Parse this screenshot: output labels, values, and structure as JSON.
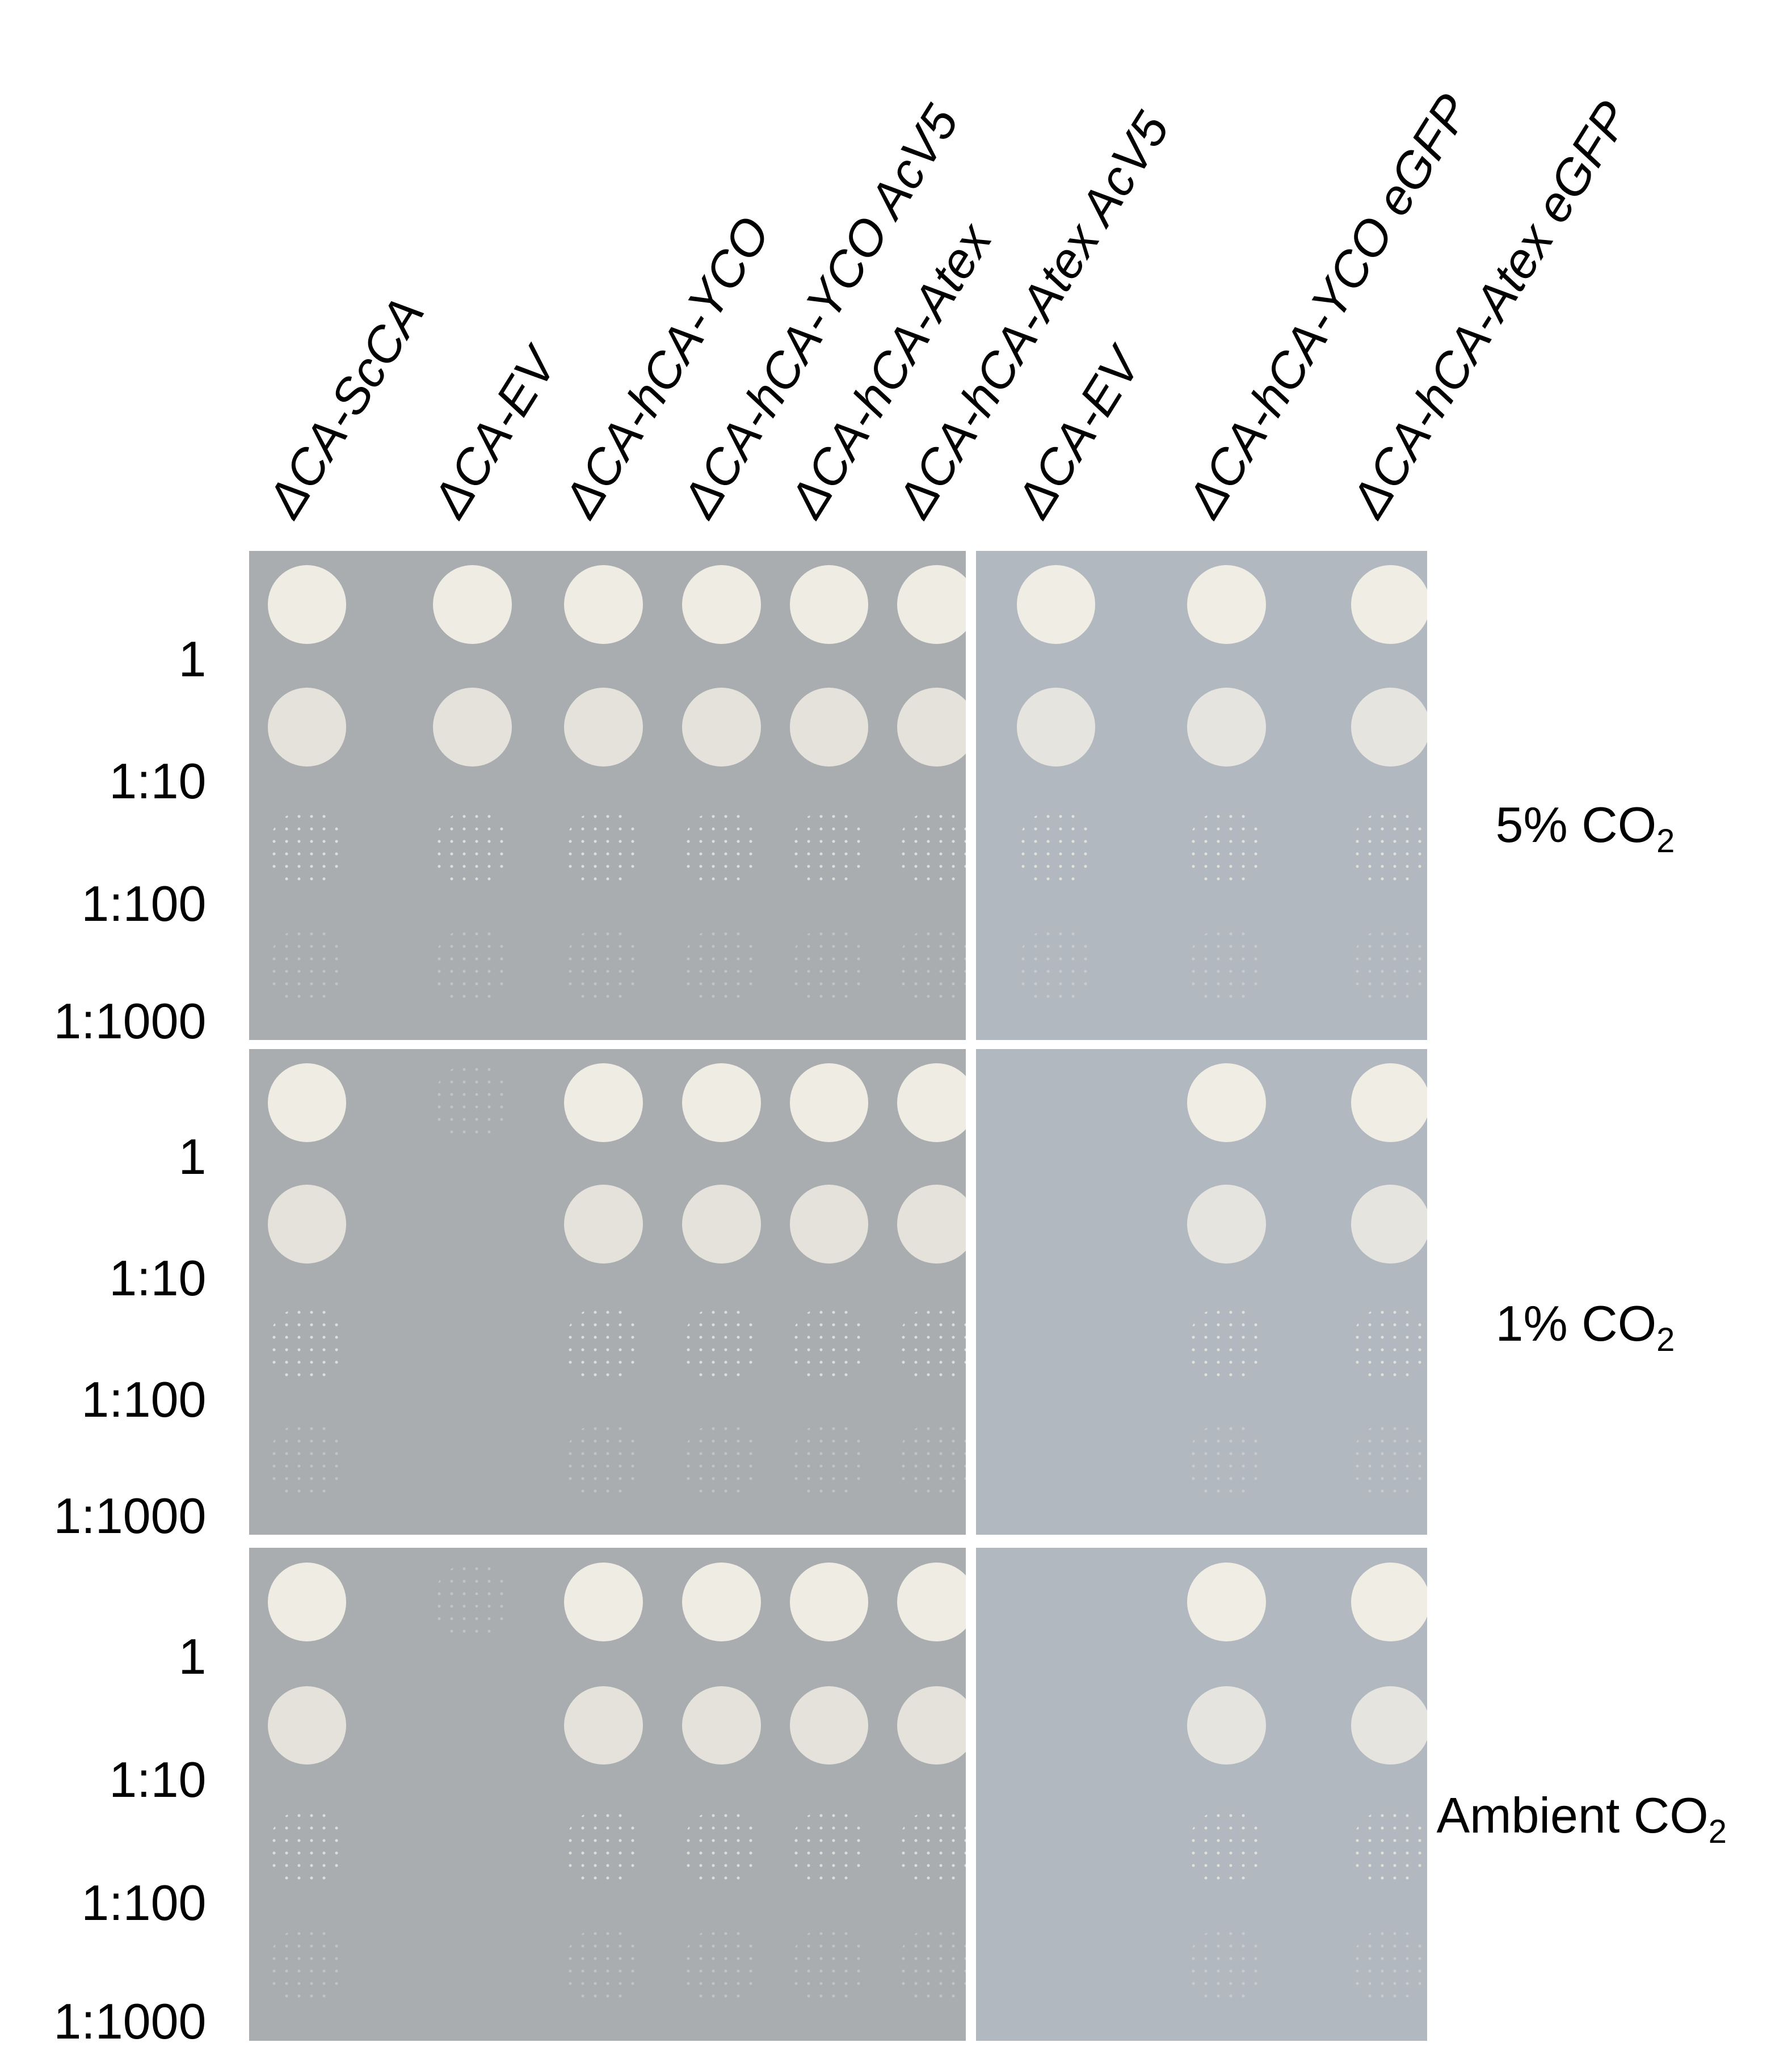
{
  "column_labels": [
    "ΔCA-ScCA",
    "ΔCA-EV",
    "ΔCA-hCA-YCO",
    "ΔCA-hCA-YCO AcV5",
    "ΔCA-hCA-Atex",
    "ΔCA-hCA-Atex AcV5",
    "ΔCA-EV",
    "ΔCA-hCA-YCO eGFP",
    "ΔCA-hCA-Atex eGFP"
  ],
  "dilutions": [
    "1",
    "1:10",
    "1:100",
    "1:1000"
  ],
  "conditions": [
    {
      "prefix": "5% CO",
      "sub": "2"
    },
    {
      "prefix": "1% CO",
      "sub": "2"
    },
    {
      "prefix": "Ambient CO",
      "sub": "2"
    }
  ],
  "growth_grid": [
    [
      [
        4,
        3,
        2,
        1
      ],
      [
        4,
        3,
        2,
        1
      ],
      [
        4,
        3,
        2,
        1
      ],
      [
        4,
        3,
        2,
        1
      ],
      [
        4,
        3,
        2,
        1
      ],
      [
        4,
        3,
        2,
        1
      ],
      [
        4,
        3,
        2,
        1
      ],
      [
        4,
        3,
        2,
        1
      ],
      [
        4,
        3,
        2,
        1
      ]
    ],
    [
      [
        4,
        3,
        2,
        1
      ],
      [
        1,
        0,
        0,
        0
      ],
      [
        4,
        3,
        2,
        1
      ],
      [
        4,
        3,
        2,
        1
      ],
      [
        4,
        3,
        2,
        1
      ],
      [
        4,
        3,
        2,
        1
      ],
      [
        0,
        0,
        0,
        0
      ],
      [
        4,
        3,
        2,
        1
      ],
      [
        4,
        3,
        2,
        1
      ]
    ],
    [
      [
        4,
        3,
        2,
        1
      ],
      [
        1,
        0,
        0,
        0
      ],
      [
        4,
        3,
        2,
        1
      ],
      [
        4,
        3,
        2,
        1
      ],
      [
        4,
        3,
        2,
        1
      ],
      [
        4,
        3,
        2,
        1
      ],
      [
        0,
        0,
        0,
        0
      ],
      [
        4,
        3,
        2,
        1
      ],
      [
        4,
        3,
        2,
        1
      ]
    ]
  ],
  "colors": {
    "plate_left": "#a9adb0",
    "plate_right": "#b2b8bf",
    "colony": "#f2efe6",
    "gap": "#ffffff"
  }
}
